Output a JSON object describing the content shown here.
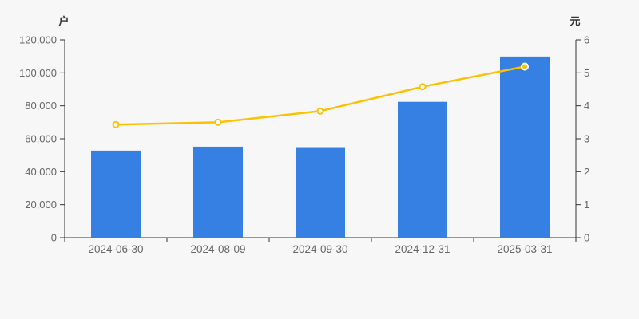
{
  "page": {
    "background_color": "#f7f7f7"
  },
  "chart_data": {
    "type": "bar",
    "title": "",
    "grid": false,
    "legend_position": "none",
    "categories": [
      "2024-06-30",
      "2024-08-09",
      "2024-09-30",
      "2024-12-31",
      "2025-03-31"
    ],
    "series": [
      {
        "name": "户",
        "type": "bar",
        "axis": "left",
        "color": "#3580e2",
        "values": [
          52800,
          55200,
          54900,
          82400,
          109900
        ]
      },
      {
        "name": "元",
        "type": "line",
        "axis": "right",
        "color": "#fdc101",
        "values": [
          3.43,
          3.5,
          3.84,
          4.58,
          5.19
        ],
        "marker": {
          "fill": "#ffffff",
          "stroke": "#fdc101"
        },
        "last_marker": {
          "fill": "#fdc101",
          "stroke": "#ffffff"
        }
      }
    ],
    "left_axis": {
      "title": "户",
      "min": 0,
      "max": 120000,
      "ticks": [
        0,
        20000,
        40000,
        60000,
        80000,
        100000,
        120000
      ],
      "tick_labels": [
        "0",
        "20,000",
        "40,000",
        "60,000",
        "80,000",
        "100,000",
        "120,000"
      ]
    },
    "right_axis": {
      "title": "元",
      "min": 0,
      "max": 6,
      "ticks": [
        0,
        1,
        2,
        3,
        4,
        5,
        6
      ],
      "tick_labels": [
        "0",
        "1",
        "2",
        "3",
        "4",
        "5",
        "6"
      ]
    },
    "style": {
      "axis_line_color": "#333333",
      "tick_label_color": "#666666",
      "axis_title_color": "#333333",
      "bar_color": "#3580e2",
      "line_color": "#fdc101"
    }
  }
}
